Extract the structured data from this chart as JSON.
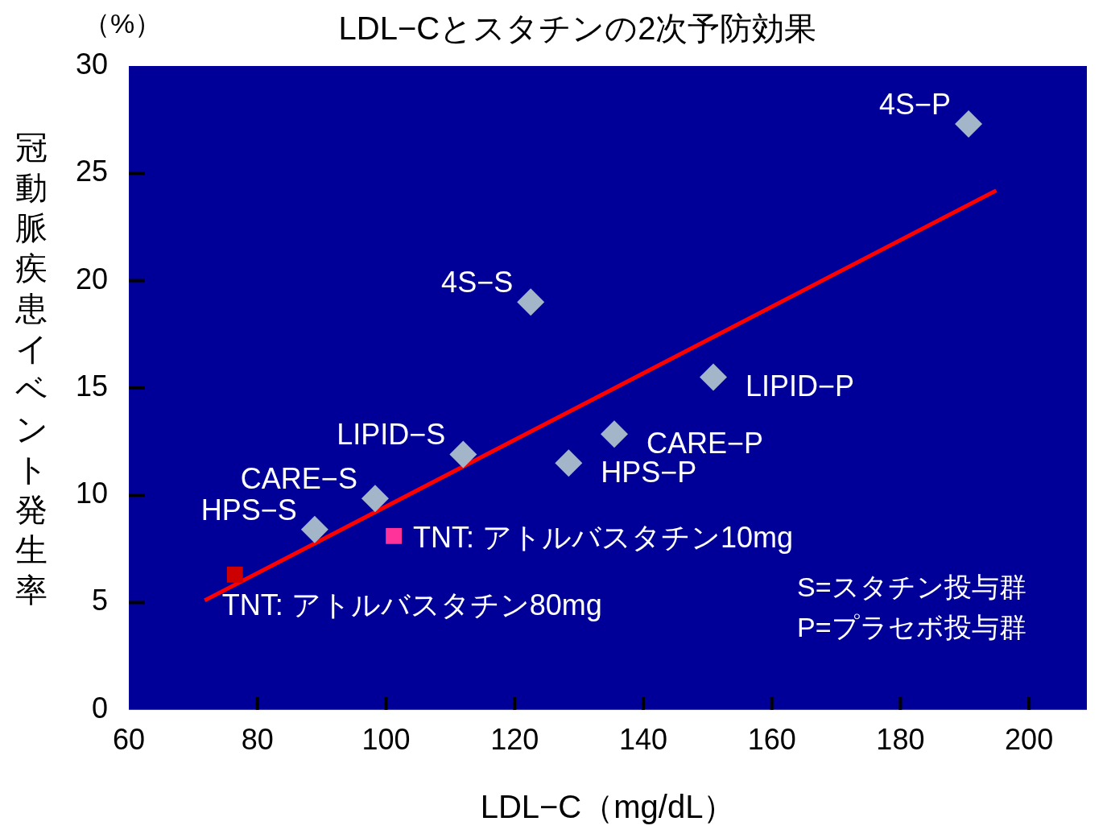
{
  "chart_data": {
    "type": "scatter",
    "title": "LDL−Cとスタチンの2次予防効果",
    "xlabel": "LDL−C（mg/dL）",
    "ylabel": "冠動脈疾患イベント発生率",
    "xlim": [
      60,
      209
    ],
    "xticks": [
      60,
      80,
      100,
      120,
      140,
      160,
      180,
      200
    ],
    "ylim": [
      0,
      30
    ],
    "yticks": [
      0,
      5,
      10,
      15,
      20,
      25,
      30
    ],
    "grid": false,
    "legend": false,
    "series": [
      {
        "type": "scatter",
        "marker": "diamond",
        "color": "#a3b5c8",
        "x": [
          190.6,
          122.5,
          150.9,
          135.5,
          128.4,
          112.0,
          98.3,
          88.9
        ],
        "values": [
          27.3,
          19.0,
          15.5,
          12.85,
          11.5,
          11.9,
          9.85,
          8.4
        ]
      },
      {
        "type": "scatter",
        "marker": "square",
        "name": "TNT: アトルバスタチン10mg",
        "color": "#ff3399",
        "x": [
          101.2
        ],
        "values": [
          8.1
        ]
      },
      {
        "type": "scatter",
        "marker": "square",
        "name": "TNT: アトルバスタチン80mg",
        "color": "#cc0000",
        "x": [
          76.5
        ],
        "values": [
          6.3
        ]
      },
      {
        "type": "line",
        "marker": "none",
        "color": "#ff0000",
        "x": [
          71.8,
          194.9
        ],
        "values": [
          5.1,
          24.2
        ]
      }
    ],
    "annotations": [
      "（%）",
      "S=スタチン投与群",
      "P=プラセボ投与群",
      {
        "text": "4S−P",
        "x": 190.6,
        "y": 27.3
      },
      {
        "text": "4S−S",
        "x": 122.5,
        "y": 19.0
      },
      {
        "text": "LIPID−P",
        "x": 150.9,
        "y": 15.5
      },
      {
        "text": "CARE−P",
        "x": 135.5,
        "y": 12.85
      },
      {
        "text": "HPS−P",
        "x": 128.4,
        "y": 11.5
      },
      {
        "text": "LIPID−S",
        "x": 112.0,
        "y": 11.9
      },
      {
        "text": "CARE−S",
        "x": 98.3,
        "y": 9.85
      },
      {
        "text": "HPS−S",
        "x": 88.9,
        "y": 8.4
      }
    ]
  }
}
